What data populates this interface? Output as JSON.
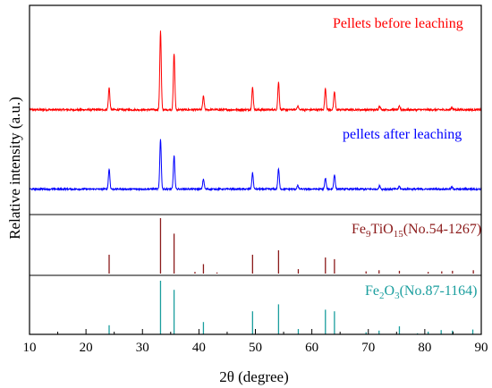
{
  "chart_data": {
    "type": "line",
    "xlabel": "2θ (degree)",
    "ylabel": "Relative intensity (a.u.)",
    "xlim": [
      10,
      90
    ],
    "xticks": [
      10,
      20,
      30,
      40,
      50,
      60,
      70,
      80,
      90
    ],
    "grid": false,
    "series": [
      {
        "name": "Pellets before leaching",
        "color": "#ff0000",
        "baseline": 0.06,
        "noise": 0.012,
        "peaks": [
          [
            24.1,
            0.28
          ],
          [
            33.2,
            1.0
          ],
          [
            35.6,
            0.72
          ],
          [
            40.8,
            0.17
          ],
          [
            49.5,
            0.28
          ],
          [
            54.1,
            0.35
          ],
          [
            57.5,
            0.05
          ],
          [
            62.4,
            0.27
          ],
          [
            64.0,
            0.23
          ],
          [
            72.0,
            0.05
          ],
          [
            75.5,
            0.04
          ],
          [
            84.8,
            0.03
          ]
        ]
      },
      {
        "name": "pellets after leaching",
        "color": "#0000ff",
        "baseline": 0.06,
        "noise": 0.012,
        "peaks": [
          [
            24.1,
            0.3
          ],
          [
            33.2,
            0.75
          ],
          [
            35.6,
            0.5
          ],
          [
            40.8,
            0.15
          ],
          [
            49.5,
            0.24
          ],
          [
            54.1,
            0.3
          ],
          [
            57.5,
            0.05
          ],
          [
            62.4,
            0.16
          ],
          [
            64.0,
            0.22
          ],
          [
            72.0,
            0.05
          ],
          [
            75.5,
            0.04
          ],
          [
            84.8,
            0.03
          ]
        ]
      }
    ],
    "references": [
      {
        "label_main": "Fe",
        "label_sub1": "9",
        "label_mid": "TiO",
        "label_sub2": "15",
        "label_tail": "(No.54-1267)",
        "color": "#8b1a1a",
        "lines": [
          [
            24.1,
            0.34
          ],
          [
            33.2,
            1.0
          ],
          [
            35.6,
            0.72
          ],
          [
            39.3,
            0.03
          ],
          [
            40.8,
            0.17
          ],
          [
            43.2,
            0.02
          ],
          [
            49.5,
            0.34
          ],
          [
            54.1,
            0.42
          ],
          [
            57.6,
            0.08
          ],
          [
            62.4,
            0.29
          ],
          [
            64.0,
            0.26
          ],
          [
            69.6,
            0.04
          ],
          [
            71.9,
            0.06
          ],
          [
            75.5,
            0.05
          ],
          [
            80.6,
            0.03
          ],
          [
            83.0,
            0.04
          ],
          [
            84.9,
            0.05
          ],
          [
            88.6,
            0.06
          ]
        ]
      },
      {
        "label_main": "Fe",
        "label_sub1": "2",
        "label_mid": "O",
        "label_sub2": "3",
        "label_tail": "(No.87-1164)",
        "color": "#1a9e9e",
        "lines": [
          [
            24.1,
            0.17
          ],
          [
            33.2,
            1.0
          ],
          [
            35.6,
            0.83
          ],
          [
            40.8,
            0.23
          ],
          [
            49.5,
            0.43
          ],
          [
            54.1,
            0.56
          ],
          [
            57.6,
            0.1
          ],
          [
            62.4,
            0.46
          ],
          [
            64.0,
            0.43
          ],
          [
            69.6,
            0.04
          ],
          [
            71.9,
            0.07
          ],
          [
            75.5,
            0.15
          ],
          [
            78.7,
            0.02
          ],
          [
            80.6,
            0.05
          ],
          [
            82.9,
            0.08
          ],
          [
            84.9,
            0.07
          ],
          [
            88.5,
            0.09
          ]
        ]
      }
    ]
  }
}
